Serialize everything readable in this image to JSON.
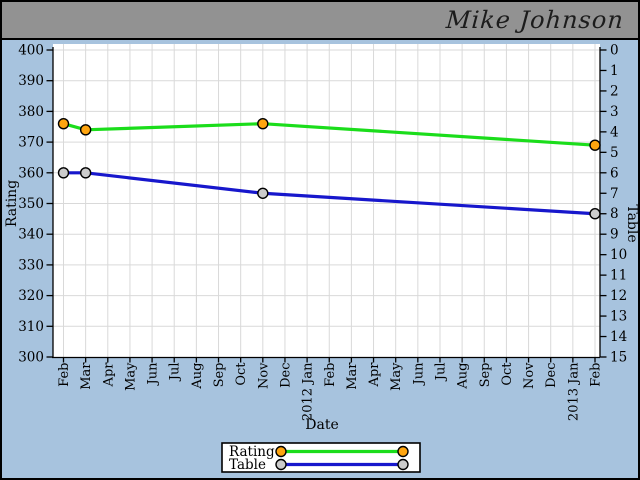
{
  "header": {
    "user_name": "Mike Johnson"
  },
  "colors": {
    "window_border": "#000000",
    "header_bg": "#929292",
    "panel_bg": "#a7c3de",
    "plot_bg": "#ffffff",
    "gridline": "#d9d9d9",
    "axis": "#000000",
    "rating_line": "#1bdd1b",
    "rating_marker": "#ffa50f",
    "table_line": "#1717cc",
    "table_marker": "#cccccc",
    "legend_bg": "#ffffff",
    "legend_border": "#000000"
  },
  "chart_data": {
    "type": "line",
    "title": "",
    "xlabel": "Date",
    "x_categories": [
      "Feb",
      "Mar",
      "Apr",
      "May",
      "Jun",
      "Jul",
      "Aug",
      "Sep",
      "Oct",
      "Nov",
      "Dec",
      "2012 Jan",
      "Feb",
      "Mar",
      "Apr",
      "May",
      "Jun",
      "Jul",
      "Aug",
      "Sep",
      "Oct",
      "Nov",
      "Dec",
      "2013 Jan",
      "Feb"
    ],
    "left_axis": {
      "label": "Rating",
      "min": 300,
      "max": 400,
      "step": 10
    },
    "right_axis": {
      "label": "Table",
      "min": 0,
      "max": 15,
      "step": 1,
      "direction": "inverted-top-to-bottom"
    },
    "grid": true,
    "legend_position": "bottom-center",
    "series": [
      {
        "name": "Rating",
        "axis": "left",
        "line_color": "#1bdd1b",
        "marker_color": "#ffa50f",
        "x_indices": [
          0,
          1,
          9,
          24
        ],
        "x_labels": [
          "Feb",
          "Mar",
          "Nov",
          "Feb"
        ],
        "values": [
          376,
          374,
          376,
          369
        ]
      },
      {
        "name": "Table",
        "axis": "right",
        "line_color": "#1717cc",
        "marker_color": "#cccccc",
        "x_indices": [
          0,
          1,
          9,
          24
        ],
        "x_labels": [
          "Feb",
          "Mar",
          "Nov",
          "Feb"
        ],
        "values": [
          6,
          6,
          7,
          8
        ]
      }
    ]
  }
}
